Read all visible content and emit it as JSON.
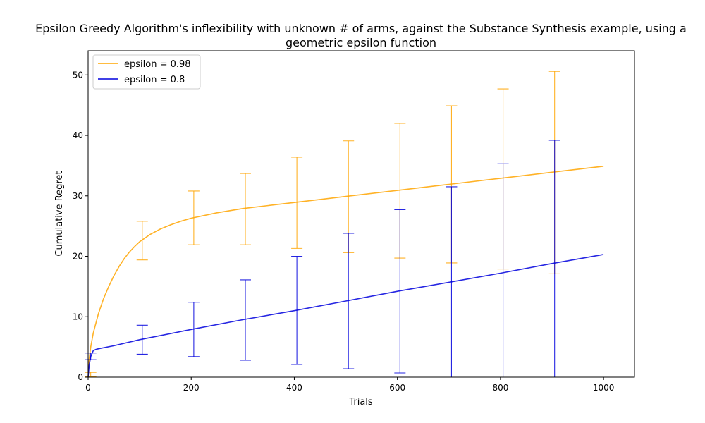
{
  "chart_data": {
    "type": "line",
    "title_lines": [
      "Epsilon Greedy Algorithm's inflexibility with unknown # of arms, against the Substance Synthesis example, using a",
      "geometric epsilon function"
    ],
    "xlabel": "Trials",
    "ylabel": "Cumulative Regret",
    "xlim": [
      0,
      1060
    ],
    "ylim": [
      0,
      54
    ],
    "xticks": [
      0,
      200,
      400,
      600,
      800,
      1000
    ],
    "yticks": [
      0,
      10,
      20,
      30,
      40,
      50
    ],
    "grid": false,
    "legend_placement": "top-left",
    "series": [
      {
        "name": "epsilon = 0.98",
        "color": "#FFA500",
        "x": [
          0,
          2,
          5,
          10,
          20,
          30,
          40,
          50,
          60,
          70,
          80,
          90,
          100,
          120,
          140,
          160,
          180,
          200,
          250,
          300,
          350,
          400,
          450,
          500,
          600,
          700,
          800,
          900,
          1000
        ],
        "y": [
          0,
          3.0,
          5.0,
          7.3,
          10.5,
          13.0,
          15.0,
          16.8,
          18.3,
          19.6,
          20.7,
          21.6,
          22.4,
          23.6,
          24.5,
          25.2,
          25.8,
          26.3,
          27.2,
          27.9,
          28.4,
          28.9,
          29.4,
          29.9,
          30.9,
          31.9,
          32.9,
          33.9,
          34.9
        ],
        "error_bars": [
          {
            "x": 5,
            "low": 0.1,
            "high": 0.8
          },
          {
            "x": 105,
            "low": 19.4,
            "high": 25.8
          },
          {
            "x": 205,
            "low": 21.9,
            "high": 30.8
          },
          {
            "x": 305,
            "low": 21.9,
            "high": 33.7
          },
          {
            "x": 405,
            "low": 21.3,
            "high": 36.4
          },
          {
            "x": 505,
            "low": 20.6,
            "high": 39.1
          },
          {
            "x": 605,
            "low": 19.7,
            "high": 42.0
          },
          {
            "x": 705,
            "low": 18.9,
            "high": 44.9
          },
          {
            "x": 805,
            "low": 17.9,
            "high": 47.7
          },
          {
            "x": 905,
            "low": 17.1,
            "high": 50.6
          }
        ]
      },
      {
        "name": "epsilon = 0.8",
        "color": "#0000DD",
        "x": [
          0,
          2,
          5,
          10,
          15,
          20,
          50,
          100,
          200,
          300,
          400,
          500,
          600,
          700,
          800,
          900,
          1000
        ],
        "y": [
          0,
          2.0,
          3.4,
          4.4,
          4.6,
          4.7,
          5.2,
          6.2,
          7.9,
          9.5,
          11.0,
          12.6,
          14.2,
          15.7,
          17.2,
          18.8,
          20.3
        ],
        "error_bars": [
          {
            "x": 5,
            "low": 2.9,
            "high": 4.0
          },
          {
            "x": 105,
            "low": 3.8,
            "high": 8.6
          },
          {
            "x": 205,
            "low": 3.4,
            "high": 12.4
          },
          {
            "x": 305,
            "low": 2.8,
            "high": 16.1
          },
          {
            "x": 405,
            "low": 2.1,
            "high": 20.0
          },
          {
            "x": 505,
            "low": 1.4,
            "high": 23.8
          },
          {
            "x": 605,
            "low": 0.7,
            "high": 27.7
          },
          {
            "x": 705,
            "low": 0,
            "high": 31.5
          },
          {
            "x": 805,
            "low": 0,
            "high": 35.3
          },
          {
            "x": 905,
            "low": 0,
            "high": 39.2
          }
        ]
      }
    ]
  }
}
